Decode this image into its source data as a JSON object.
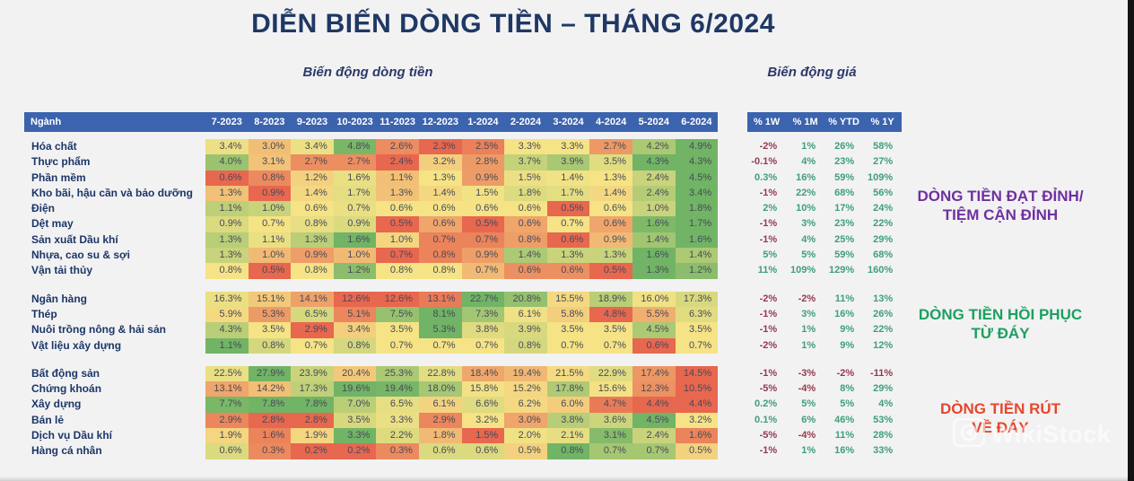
{
  "chart_data": {
    "type": "heatmap",
    "title": "DIỄN BIẾN DÒNG TIỀN – THÁNG 6/2024",
    "flow_section_label": "Biến động dòng tiền",
    "price_section_label": "Biến động giá",
    "row_header": "Ngành",
    "month_columns": [
      "7-2023",
      "8-2023",
      "9-2023",
      "10-2023",
      "11-2023",
      "12-2023",
      "1-2024",
      "2-2024",
      "3-2024",
      "4-2024",
      "5-2024",
      "6-2024"
    ],
    "price_columns": [
      "% 1W",
      "% 1M",
      "% YTD",
      "% 1Y"
    ],
    "groups": [
      {
        "rows": [
          {
            "sector": "Hóa chất",
            "flows": [
              "3.4%",
              "3.0%",
              "3.4%",
              "4.8%",
              "2.6%",
              "2.3%",
              "2.5%",
              "3.3%",
              "3.3%",
              "2.7%",
              "4.2%",
              "4.9%"
            ],
            "prices": [
              "-2%",
              "1%",
              "26%",
              "58%"
            ]
          },
          {
            "sector": "Thực phẩm",
            "flows": [
              "4.0%",
              "3.1%",
              "2.7%",
              "2.7%",
              "2.4%",
              "3.2%",
              "2.8%",
              "3.7%",
              "3.9%",
              "3.5%",
              "4.3%",
              "4.3%"
            ],
            "prices": [
              "-0.1%",
              "4%",
              "23%",
              "27%"
            ]
          },
          {
            "sector": "Phần mềm",
            "flows": [
              "0.6%",
              "0.8%",
              "1.2%",
              "1.6%",
              "1.1%",
              "1.3%",
              "0.9%",
              "1.5%",
              "1.4%",
              "1.3%",
              "2.4%",
              "4.5%"
            ],
            "prices": [
              "0.3%",
              "16%",
              "59%",
              "109%"
            ]
          },
          {
            "sector": "Kho bãi, hậu cần và bảo dưỡng",
            "flows": [
              "1.3%",
              "0.9%",
              "1.4%",
              "1.7%",
              "1.3%",
              "1.4%",
              "1.5%",
              "1.8%",
              "1.7%",
              "1.4%",
              "2.4%",
              "3.4%"
            ],
            "prices": [
              "-1%",
              "22%",
              "68%",
              "56%"
            ]
          },
          {
            "sector": "Điện",
            "flows": [
              "1.1%",
              "1.0%",
              "0.6%",
              "0.7%",
              "0.6%",
              "0.6%",
              "0.6%",
              "0.6%",
              "0.5%",
              "0.6%",
              "1.0%",
              "1.8%"
            ],
            "prices": [
              "2%",
              "10%",
              "17%",
              "24%"
            ]
          },
          {
            "sector": "Dệt may",
            "flows": [
              "0.9%",
              "0.7%",
              "0.8%",
              "0.9%",
              "0.5%",
              "0.6%",
              "0.5%",
              "0.6%",
              "0.7%",
              "0.6%",
              "1.6%",
              "1.7%"
            ],
            "prices": [
              "-1%",
              "3%",
              "23%",
              "22%"
            ]
          },
          {
            "sector": "Sản xuất Dầu khí",
            "flows": [
              "1.3%",
              "1.1%",
              "1.3%",
              "1.6%",
              "1.0%",
              "0.7%",
              "0.7%",
              "0.8%",
              "0.6%",
              "0.9%",
              "1.4%",
              "1.6%"
            ],
            "prices": [
              "-1%",
              "4%",
              "25%",
              "29%"
            ]
          },
          {
            "sector": "Nhựa, cao su & sợi",
            "flows": [
              "1.3%",
              "1.0%",
              "0.9%",
              "1.0%",
              "0.7%",
              "0.8%",
              "0.9%",
              "1.4%",
              "1.3%",
              "1.3%",
              "1.6%",
              "1.4%"
            ],
            "prices": [
              "5%",
              "5%",
              "59%",
              "68%"
            ]
          },
          {
            "sector": "Vận tải thủy",
            "flows": [
              "0.8%",
              "0.5%",
              "0.8%",
              "1.2%",
              "0.8%",
              "0.8%",
              "0.7%",
              "0.6%",
              "0.6%",
              "0.5%",
              "1.3%",
              "1.2%"
            ],
            "prices": [
              "11%",
              "109%",
              "129%",
              "160%"
            ]
          }
        ]
      },
      {
        "rows": [
          {
            "sector": "Ngân hàng",
            "flows": [
              "16.3%",
              "15.1%",
              "14.1%",
              "12.6%",
              "12.6%",
              "13.1%",
              "22.7%",
              "20.8%",
              "15.5%",
              "18.9%",
              "16.0%",
              "17.3%"
            ],
            "prices": [
              "-2%",
              "-2%",
              "11%",
              "13%"
            ]
          },
          {
            "sector": "Thép",
            "flows": [
              "5.9%",
              "5.3%",
              "6.5%",
              "5.1%",
              "7.5%",
              "8.1%",
              "7.3%",
              "6.1%",
              "5.8%",
              "4.8%",
              "5.5%",
              "6.3%"
            ],
            "prices": [
              "-1%",
              "3%",
              "16%",
              "26%"
            ]
          },
          {
            "sector": "Nuôi trồng nông & hải sản",
            "flows": [
              "4.3%",
              "3.5%",
              "2.9%",
              "3.4%",
              "3.5%",
              "5.3%",
              "3.8%",
              "3.9%",
              "3.5%",
              "3.5%",
              "4.5%",
              "3.5%"
            ],
            "prices": [
              "-1%",
              "1%",
              "9%",
              "22%"
            ]
          },
          {
            "sector": "Vật liệu xây dựng",
            "flows": [
              "1.1%",
              "0.8%",
              "0.7%",
              "0.8%",
              "0.7%",
              "0.7%",
              "0.7%",
              "0.8%",
              "0.7%",
              "0.7%",
              "0.6%",
              "0.7%"
            ],
            "prices": [
              "-2%",
              "1%",
              "9%",
              "12%"
            ]
          }
        ]
      },
      {
        "rows": [
          {
            "sector": "Bất động sản",
            "flows": [
              "22.5%",
              "27.9%",
              "23.9%",
              "20.4%",
              "25.3%",
              "22.8%",
              "18.4%",
              "19.4%",
              "21.5%",
              "22.9%",
              "17.4%",
              "14.5%"
            ],
            "prices": [
              "-1%",
              "-3%",
              "-2%",
              "-11%"
            ]
          },
          {
            "sector": "Chứng khoán",
            "flows": [
              "13.1%",
              "14.2%",
              "17.3%",
              "19.6%",
              "19.4%",
              "18.0%",
              "15.8%",
              "15.2%",
              "17.8%",
              "15.6%",
              "12.3%",
              "10.5%"
            ],
            "prices": [
              "-5%",
              "-4%",
              "8%",
              "29%"
            ]
          },
          {
            "sector": "Xây dựng",
            "flows": [
              "7.7%",
              "7.8%",
              "7.8%",
              "7.0%",
              "6.5%",
              "6.1%",
              "6.6%",
              "6.2%",
              "6.0%",
              "4.7%",
              "4.4%",
              "4.4%"
            ],
            "prices": [
              "0.2%",
              "5%",
              "5%",
              "4%"
            ]
          },
          {
            "sector": "Bán lẻ",
            "flows": [
              "2.9%",
              "2.8%",
              "2.8%",
              "3.5%",
              "3.3%",
              "2.9%",
              "3.2%",
              "3.0%",
              "3.8%",
              "3.6%",
              "4.5%",
              "3.2%"
            ],
            "prices": [
              "0.1%",
              "6%",
              "46%",
              "53%"
            ]
          },
          {
            "sector": "Dịch vụ Dầu khí",
            "flows": [
              "1.9%",
              "1.6%",
              "1.9%",
              "3.3%",
              "2.2%",
              "1.8%",
              "1.5%",
              "2.0%",
              "2.1%",
              "3.1%",
              "2.4%",
              "1.6%"
            ],
            "prices": [
              "-5%",
              "-4%",
              "11%",
              "28%"
            ]
          },
          {
            "sector": "Hàng cá nhân",
            "flows": [
              "0.6%",
              "0.3%",
              "0.2%",
              "0.2%",
              "0.3%",
              "0.6%",
              "0.6%",
              "0.5%",
              "0.8%",
              "0.7%",
              "0.7%",
              "0.5%"
            ],
            "prices": [
              "-1%",
              "1%",
              "16%",
              "33%"
            ]
          }
        ]
      }
    ]
  },
  "annotations": [
    {
      "line1": "DÒNG TIỀN ĐẠT ĐỈNH/",
      "line2": "TIỆM CẬN ĐỈNH",
      "color": "#7030a0"
    },
    {
      "line1": "DÒNG TIỀN HỒI PHỤC",
      "line2": "TỪ ĐÁY",
      "color": "#1ca05f"
    },
    {
      "line1": "DÒNG TIỀN RÚT",
      "line2": "VỀ ĐÁY",
      "color": "#e5472b"
    }
  ],
  "watermark": {
    "text": "WikiStock"
  },
  "colors": {
    "title": "#1f3864",
    "header_bg": "#3b63ae",
    "heat_low": "#e8674f",
    "heat_mid": "#f5e386",
    "heat_high": "#71b465",
    "price_negative": "#963a4c",
    "price_positive": "#3f9f78"
  }
}
